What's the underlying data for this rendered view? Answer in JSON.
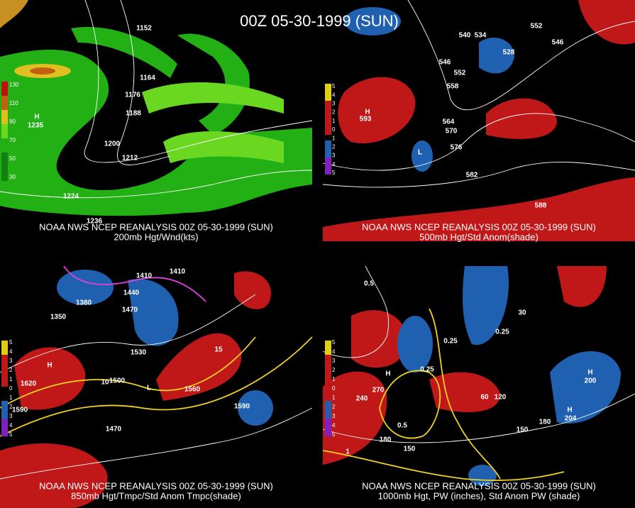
{
  "title": "00Z 05-30-1999 (SUN)",
  "panels": [
    {
      "header": "NOAA NWS NCEP REANALYSIS 00Z 05-30-1999 (SUN)",
      "caption": "200mb Hgt/Wnd(kts)",
      "legend": [
        "130",
        "110",
        "90",
        "70",
        "50",
        "30"
      ],
      "labels": [
        "1152",
        "1164",
        "1176",
        "1188",
        "1200",
        "1212",
        "1224",
        "1236",
        "H",
        "1235"
      ]
    },
    {
      "header": "NOAA NWS NCEP REANALYSIS 00Z 05-30-1999 (SUN)",
      "caption": "500mb Hgt/Std Anom(shade)",
      "legend": [
        "5",
        "4",
        "3",
        "2",
        "1",
        "0",
        "1",
        "2",
        "3",
        "4",
        "5"
      ],
      "labels": [
        "540",
        "534",
        "546",
        "552",
        "558",
        "564",
        "570",
        "576",
        "582",
        "588",
        "528",
        "552",
        "546",
        "H",
        "593",
        "L"
      ]
    },
    {
      "header": "NOAA NWS NCEP REANALYSIS 00Z 05-30-1999 (SUN)",
      "caption": "850mb Hgt/Tmpc/Std Anom Tmpc(shade)",
      "legend": [
        "5",
        "4",
        "3",
        "2",
        "1",
        "0",
        "1",
        "2",
        "3",
        "4",
        "5"
      ],
      "labels": [
        "1410",
        "1410",
        "1440",
        "1470",
        "1380",
        "1350",
        "1530",
        "1500",
        "1560",
        "1590",
        "1620",
        "1590",
        "1470",
        "10",
        "15",
        "L",
        "H"
      ]
    },
    {
      "header": "NOAA NWS NCEP REANALYSIS 00Z 05-30-1999 (SUN)",
      "caption": "1000mb Hgt, PW (inches), Std Anom PW (shade)",
      "legend": [
        "5",
        "4",
        "3",
        "2",
        "1",
        "0",
        "1",
        "2",
        "3",
        "4",
        "5"
      ],
      "labels": [
        "0.5",
        "0.25",
        "0.25",
        "0.25",
        "0.5",
        "240",
        "270",
        "180",
        "150",
        "120",
        "60",
        "30",
        "180",
        "150",
        "H",
        "H",
        "200",
        "H",
        "204",
        "1"
      ]
    }
  ]
}
